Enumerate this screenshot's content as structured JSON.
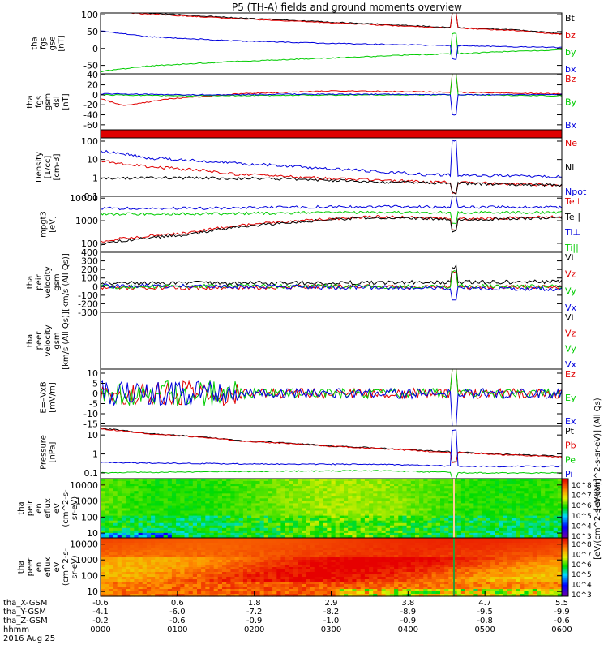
{
  "title": "P5 (TH-A) fields and ground moments overview",
  "colors": {
    "black": "#000000",
    "red": "#e00000",
    "green": "#00cc00",
    "blue": "#0000dd"
  },
  "chart_data": [
    {
      "type": "line",
      "id": "fgs",
      "ylabel": [
        "tha",
        "fgs",
        "gse",
        "[nT]"
      ],
      "ylim": [
        -75,
        105
      ],
      "yticks": [
        100,
        50,
        0,
        -50
      ],
      "series": [
        {
          "name": "Bt",
          "color": "black",
          "points": [
            [
              0,
              115
            ],
            [
              0.1,
              105
            ],
            [
              0.3,
              90
            ],
            [
              0.5,
              78
            ],
            [
              0.7,
              66
            ],
            [
              0.8,
              60
            ],
            [
              0.9,
              55
            ],
            [
              1,
              44
            ]
          ]
        },
        {
          "name": "bz",
          "color": "red",
          "points": [
            [
              0,
              110
            ],
            [
              0.1,
              102
            ],
            [
              0.3,
              88
            ],
            [
              0.5,
              76
            ],
            [
              0.7,
              64
            ],
            [
              0.8,
              59
            ],
            [
              0.9,
              53
            ],
            [
              1,
              42
            ]
          ]
        },
        {
          "name": "by",
          "color": "green",
          "points": [
            [
              0,
              -68
            ],
            [
              0.1,
              -52
            ],
            [
              0.3,
              -38
            ],
            [
              0.5,
              -28
            ],
            [
              0.7,
              -18
            ],
            [
              0.8,
              -14
            ],
            [
              0.9,
              -8
            ],
            [
              1,
              -4
            ]
          ]
        },
        {
          "name": "bx",
          "color": "blue",
          "points": [
            [
              0,
              52
            ],
            [
              0.1,
              35
            ],
            [
              0.3,
              22
            ],
            [
              0.5,
              15
            ],
            [
              0.7,
              10
            ],
            [
              0.8,
              8
            ],
            [
              0.9,
              5
            ],
            [
              1,
              3
            ]
          ]
        }
      ]
    },
    {
      "type": "line",
      "id": "fgs_gsm",
      "ylabel": [
        "tha",
        "fgs",
        "gsm",
        "dsl",
        "[nT]"
      ],
      "ylim": [
        -70,
        42
      ],
      "yticks": [
        40,
        20,
        0,
        -20,
        -40,
        -60
      ],
      "series": [
        {
          "name": "Bz",
          "color": "red",
          "points": [
            [
              0,
              -8
            ],
            [
              0.05,
              -22
            ],
            [
              0.15,
              -8
            ],
            [
              0.3,
              2
            ],
            [
              0.5,
              8
            ],
            [
              0.7,
              6
            ],
            [
              0.85,
              4
            ],
            [
              1,
              2
            ]
          ]
        },
        {
          "name": "By",
          "color": "green",
          "points": [
            [
              0,
              0
            ],
            [
              0.2,
              -2
            ],
            [
              0.4,
              -1
            ],
            [
              0.6,
              0
            ],
            [
              0.8,
              0
            ],
            [
              1,
              -2
            ]
          ]
        },
        {
          "name": "Bx",
          "color": "blue",
          "points": [
            [
              0,
              2
            ],
            [
              0.2,
              0
            ],
            [
              0.4,
              1
            ],
            [
              0.6,
              1
            ],
            [
              0.8,
              0
            ],
            [
              1,
              1
            ]
          ]
        }
      ]
    },
    {
      "type": "line",
      "id": "density",
      "log": true,
      "ylabel": [
        "Density",
        "[1/cc]",
        "[cm-3]"
      ],
      "ylim": [
        0.1,
        150
      ],
      "yticks": [
        100.0,
        10.0,
        1.0,
        0.1
      ],
      "series": [
        {
          "name": "Ne",
          "color": "red",
          "points": [
            [
              0,
              8
            ],
            [
              0.1,
              4
            ],
            [
              0.3,
              1.5
            ],
            [
              0.5,
              0.9
            ],
            [
              0.7,
              0.6
            ],
            [
              1,
              0.4
            ]
          ]
        },
        {
          "name": "Ni",
          "color": "black",
          "points": [
            [
              0,
              1
            ],
            [
              0.2,
              1
            ],
            [
              0.4,
              0.9
            ],
            [
              0.6,
              0.6
            ],
            [
              0.8,
              0.5
            ],
            [
              1,
              0.4
            ]
          ]
        },
        {
          "name": "Npot",
          "color": "blue",
          "points": [
            [
              0,
              30
            ],
            [
              0.1,
              12
            ],
            [
              0.3,
              6
            ],
            [
              0.5,
              3
            ],
            [
              0.7,
              1.5
            ],
            [
              1,
              1.2
            ]
          ]
        }
      ]
    },
    {
      "type": "line",
      "id": "temp",
      "log": true,
      "ylabel": [
        "mpgt3",
        "[eV]"
      ],
      "ylim": [
        40,
        12000
      ],
      "yticks": [
        10000,
        1000,
        100
      ],
      "series": [
        {
          "name": "Te⊥",
          "color": "red",
          "points": [
            [
              0,
              120
            ],
            [
              0.2,
              300
            ],
            [
              0.4,
              900
            ],
            [
              0.6,
              1500
            ],
            [
              0.8,
              1200
            ],
            [
              1,
              1500
            ]
          ]
        },
        {
          "name": "Te||",
          "color": "black",
          "points": [
            [
              0,
              90
            ],
            [
              0.2,
              250
            ],
            [
              0.4,
              800
            ],
            [
              0.6,
              1400
            ],
            [
              0.8,
              1100
            ],
            [
              1,
              1400
            ]
          ]
        },
        {
          "name": "Ti⊥",
          "color": "blue",
          "points": [
            [
              0,
              3500
            ],
            [
              0.2,
              3500
            ],
            [
              0.4,
              4000
            ],
            [
              0.6,
              4200
            ],
            [
              0.8,
              4000
            ],
            [
              1,
              4000
            ]
          ]
        },
        {
          "name": "Ti||",
          "color": "green",
          "points": [
            [
              0,
              2000
            ],
            [
              0.2,
              2000
            ],
            [
              0.4,
              2200
            ],
            [
              0.6,
              2400
            ],
            [
              0.8,
              2300
            ],
            [
              1,
              2300
            ]
          ]
        }
      ]
    },
    {
      "type": "line",
      "id": "peir_vel",
      "ylabel": [
        "tha",
        "peir",
        "velocity",
        "gsm",
        "[km/s (All Qs)]"
      ],
      "ylim": [
        -300,
        400
      ],
      "yticks": [
        400,
        300,
        200,
        100,
        0,
        -100,
        -200,
        -300
      ],
      "series": [
        {
          "name": "Vt",
          "color": "black",
          "points": [
            [
              0,
              40
            ],
            [
              0.3,
              40
            ],
            [
              0.6,
              45
            ],
            [
              0.8,
              50
            ],
            [
              1,
              60
            ]
          ]
        },
        {
          "name": "Vz",
          "color": "red",
          "points": [
            [
              0,
              -20
            ],
            [
              0.3,
              -10
            ],
            [
              0.6,
              0
            ],
            [
              0.8,
              -5
            ],
            [
              1,
              0
            ]
          ]
        },
        {
          "name": "Vy",
          "color": "green",
          "points": [
            [
              0,
              0
            ],
            [
              0.3,
              5
            ],
            [
              0.6,
              0
            ],
            [
              0.8,
              5
            ],
            [
              1,
              0
            ]
          ]
        },
        {
          "name": "Vx",
          "color": "blue",
          "points": [
            [
              0,
              10
            ],
            [
              0.3,
              0
            ],
            [
              0.6,
              -10
            ],
            [
              0.8,
              -20
            ],
            [
              1,
              -30
            ]
          ]
        }
      ]
    },
    {
      "type": "line",
      "id": "peer_vel",
      "ylabel": [
        "tha",
        "peer",
        "velocity",
        "gsm",
        "[km/s (All Qs)]"
      ],
      "series": [
        {
          "name": "Vt",
          "color": "black",
          "points": []
        },
        {
          "name": "Vz",
          "color": "red",
          "points": []
        },
        {
          "name": "Vy",
          "color": "green",
          "points": []
        },
        {
          "name": "Vx",
          "color": "blue",
          "points": []
        }
      ]
    },
    {
      "type": "line",
      "id": "efield",
      "ylabel": [
        "E=–VxB",
        "[mV/m]"
      ],
      "ylim": [
        -16,
        12
      ],
      "yticks": [
        10,
        5,
        0,
        -5,
        -10,
        -15
      ],
      "series": [
        {
          "name": "Ez",
          "color": "red",
          "points": [
            [
              0,
              0
            ],
            [
              1,
              0
            ]
          ]
        },
        {
          "name": "Ey",
          "color": "green",
          "points": [
            [
              0,
              0
            ],
            [
              1,
              0
            ]
          ]
        },
        {
          "name": "Ex",
          "color": "blue",
          "points": [
            [
              0,
              0
            ],
            [
              1,
              0
            ]
          ]
        }
      ]
    },
    {
      "type": "line",
      "id": "pressure",
      "log": true,
      "ylabel": [
        "Pressure",
        "[nPa]"
      ],
      "ylim": [
        0.05,
        30
      ],
      "yticks": [
        10.0,
        1.0,
        0.1
      ],
      "series": [
        {
          "name": "Pt",
          "color": "black",
          "points": [
            [
              0,
              22
            ],
            [
              0.1,
              12
            ],
            [
              0.3,
              5
            ],
            [
              0.5,
              2.6
            ],
            [
              0.7,
              1.5
            ],
            [
              0.85,
              1.0
            ],
            [
              1,
              0.75
            ]
          ]
        },
        {
          "name": "Pb",
          "color": "red",
          "points": [
            [
              0,
              21
            ],
            [
              0.1,
              11.5
            ],
            [
              0.3,
              4.8
            ],
            [
              0.5,
              2.5
            ],
            [
              0.7,
              1.4
            ],
            [
              0.85,
              0.95
            ],
            [
              1,
              0.7
            ]
          ]
        },
        {
          "name": "Pe",
          "color": "green",
          "points": [
            [
              0,
              0.1
            ],
            [
              0.3,
              0.12
            ],
            [
              0.6,
              0.13
            ],
            [
              0.8,
              0.1
            ],
            [
              1,
              0.1
            ]
          ]
        },
        {
          "name": "Pi",
          "color": "blue",
          "points": [
            [
              0,
              0.35
            ],
            [
              0.3,
              0.3
            ],
            [
              0.6,
              0.28
            ],
            [
              0.8,
              0.22
            ],
            [
              1,
              0.22
            ]
          ]
        }
      ]
    },
    {
      "type": "heatmap",
      "id": "peir_en",
      "log": true,
      "ylabel": [
        "tha",
        "peir",
        "en",
        "eflux",
        "eV",
        "(cm^2-s-",
        "sr-eV)"
      ],
      "ylim": [
        5,
        25000
      ],
      "yticks": [
        10000,
        1000,
        100,
        10
      ]
    },
    {
      "type": "heatmap",
      "id": "peer_en",
      "log": true,
      "ylabel": [
        "tha",
        "peer",
        "en",
        "eflux",
        "eV",
        "(cm^2-s-",
        "sr-eV)"
      ],
      "ylim": [
        5,
        25000
      ],
      "yticks": [
        10000,
        1000,
        100,
        10
      ]
    }
  ],
  "colorbar_label": "[eV/(cm^2-s-sr-eV)]",
  "colorbar_label2": "[eV/(cm^2-s-sr-eV)] (All Qs)",
  "colorbar_ticks": [
    "10^8",
    "10^7",
    "10^6",
    "10^5",
    "10^4",
    "10^3"
  ],
  "xaxis": {
    "rows": [
      {
        "label": "tha_X-GSM",
        "values": [
          "-0.6",
          "0.6",
          "1.8",
          "2.9",
          "3.8",
          "4.7",
          "5.5"
        ]
      },
      {
        "label": "tha_Y-GSM",
        "values": [
          "-4.1",
          "-6.0",
          "-7.2",
          "-8.2",
          "-8.9",
          "-9.5",
          "-9.9"
        ]
      },
      {
        "label": "tha_Z-GSM",
        "values": [
          "-0.2",
          "-0.6",
          "-0.9",
          "-1.0",
          "-0.9",
          "-0.8",
          "-0.6"
        ]
      },
      {
        "label": "hhmm",
        "values": [
          "0000",
          "0100",
          "0200",
          "0300",
          "0400",
          "0500",
          "0600"
        ]
      }
    ],
    "date": "2016 Aug 25"
  }
}
